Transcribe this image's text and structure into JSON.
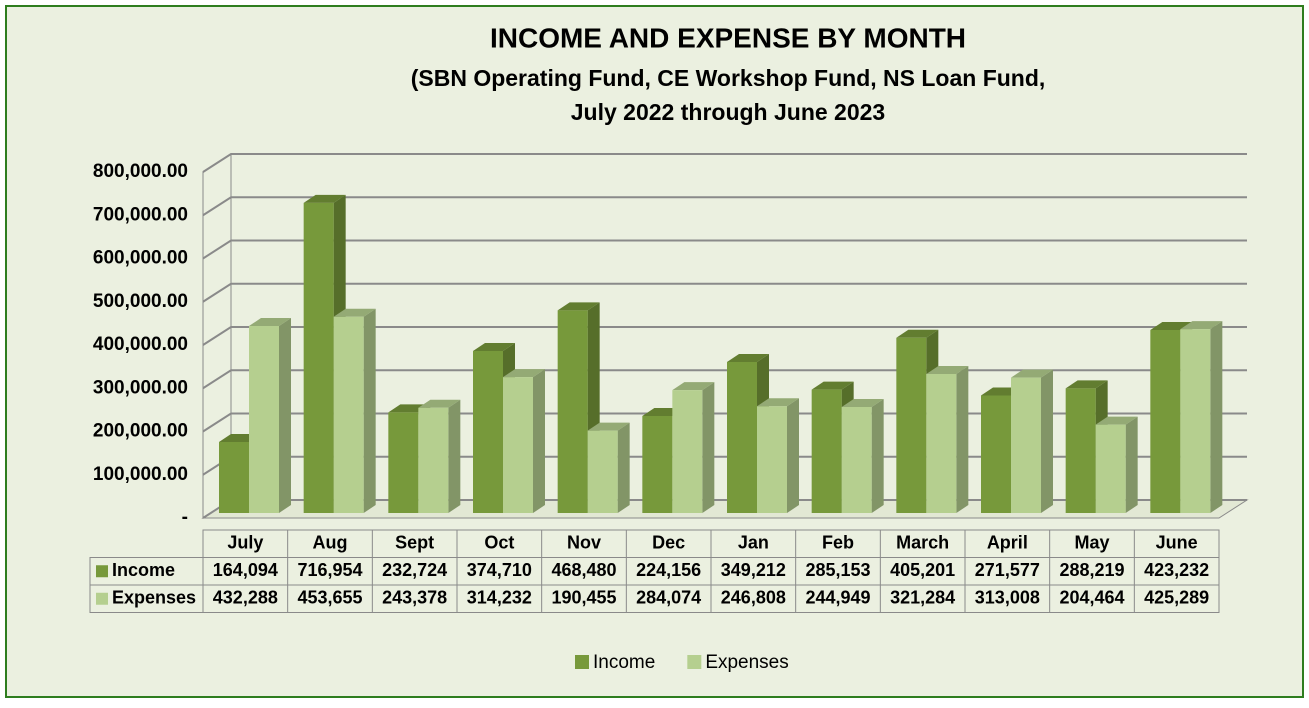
{
  "chart_data": {
    "type": "bar3d",
    "title": "INCOME AND EXPENSE BY MONTH",
    "subtitle": [
      "(SBN Operating Fund, CE Workshop Fund, NS Loan Fund,",
      "July 2022 through June 2023"
    ],
    "categories": [
      "July",
      "Aug",
      "Sept",
      "Oct",
      "Nov",
      "Dec",
      "Jan",
      "Feb",
      "March",
      "April",
      "May",
      "June"
    ],
    "series": [
      {
        "name": "Income",
        "color": "#77993b",
        "values": [
          164094,
          716954,
          232724,
          374710,
          468480,
          224156,
          349212,
          285153,
          405201,
          271577,
          288219,
          423232
        ],
        "value_labels": [
          "164,094",
          "716,954",
          "232,724",
          "374,710",
          "468,480",
          "224,156",
          "349,212",
          "285,153",
          "405,201",
          "271,577",
          "288,219",
          "423,232"
        ]
      },
      {
        "name": "Expenses",
        "color": "#b5cf8f",
        "values": [
          432288,
          453655,
          243378,
          314232,
          190455,
          284074,
          246808,
          244949,
          321284,
          313008,
          204464,
          425289
        ],
        "value_labels": [
          "432,288",
          "453,655",
          "243,378",
          "314,232",
          "190,455",
          "284,074",
          "246,808",
          "244,949",
          "321,284",
          "313,008",
          "204,464",
          "425,289"
        ]
      }
    ],
    "ylim": [
      0,
      800000
    ],
    "yticks": [
      {
        "value": 0,
        "label": "-"
      },
      {
        "value": 100000,
        "label": "100,000.00"
      },
      {
        "value": 200000,
        "label": "200,000.00"
      },
      {
        "value": 300000,
        "label": "300,000.00"
      },
      {
        "value": 400000,
        "label": "400,000.00"
      },
      {
        "value": 500000,
        "label": "500,000.00"
      },
      {
        "value": 600000,
        "label": "600,000.00"
      },
      {
        "value": 700000,
        "label": "700,000.00"
      },
      {
        "value": 800000,
        "label": "800,000.00"
      }
    ],
    "grid": true,
    "legend": "bottom"
  }
}
